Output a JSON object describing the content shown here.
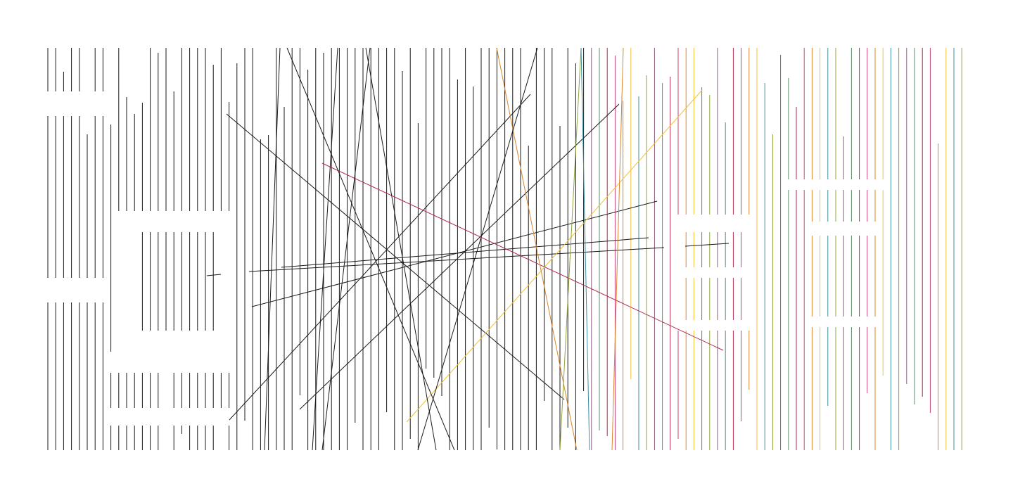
{
  "palette": {
    "background": "#ffffff",
    "ink": "#1a1a1a",
    "crimson": "#b0294a",
    "orange": "#d9842b",
    "yellow": "#f0c23a",
    "teal": "#3f8fa5",
    "olive": "#8fa43a",
    "pink": "#c9407a",
    "mauve": "#8a5a7a",
    "green": "#5d8f6a"
  },
  "artwork": {
    "description_hidden_word": "",
    "style": "string-art-lines"
  }
}
